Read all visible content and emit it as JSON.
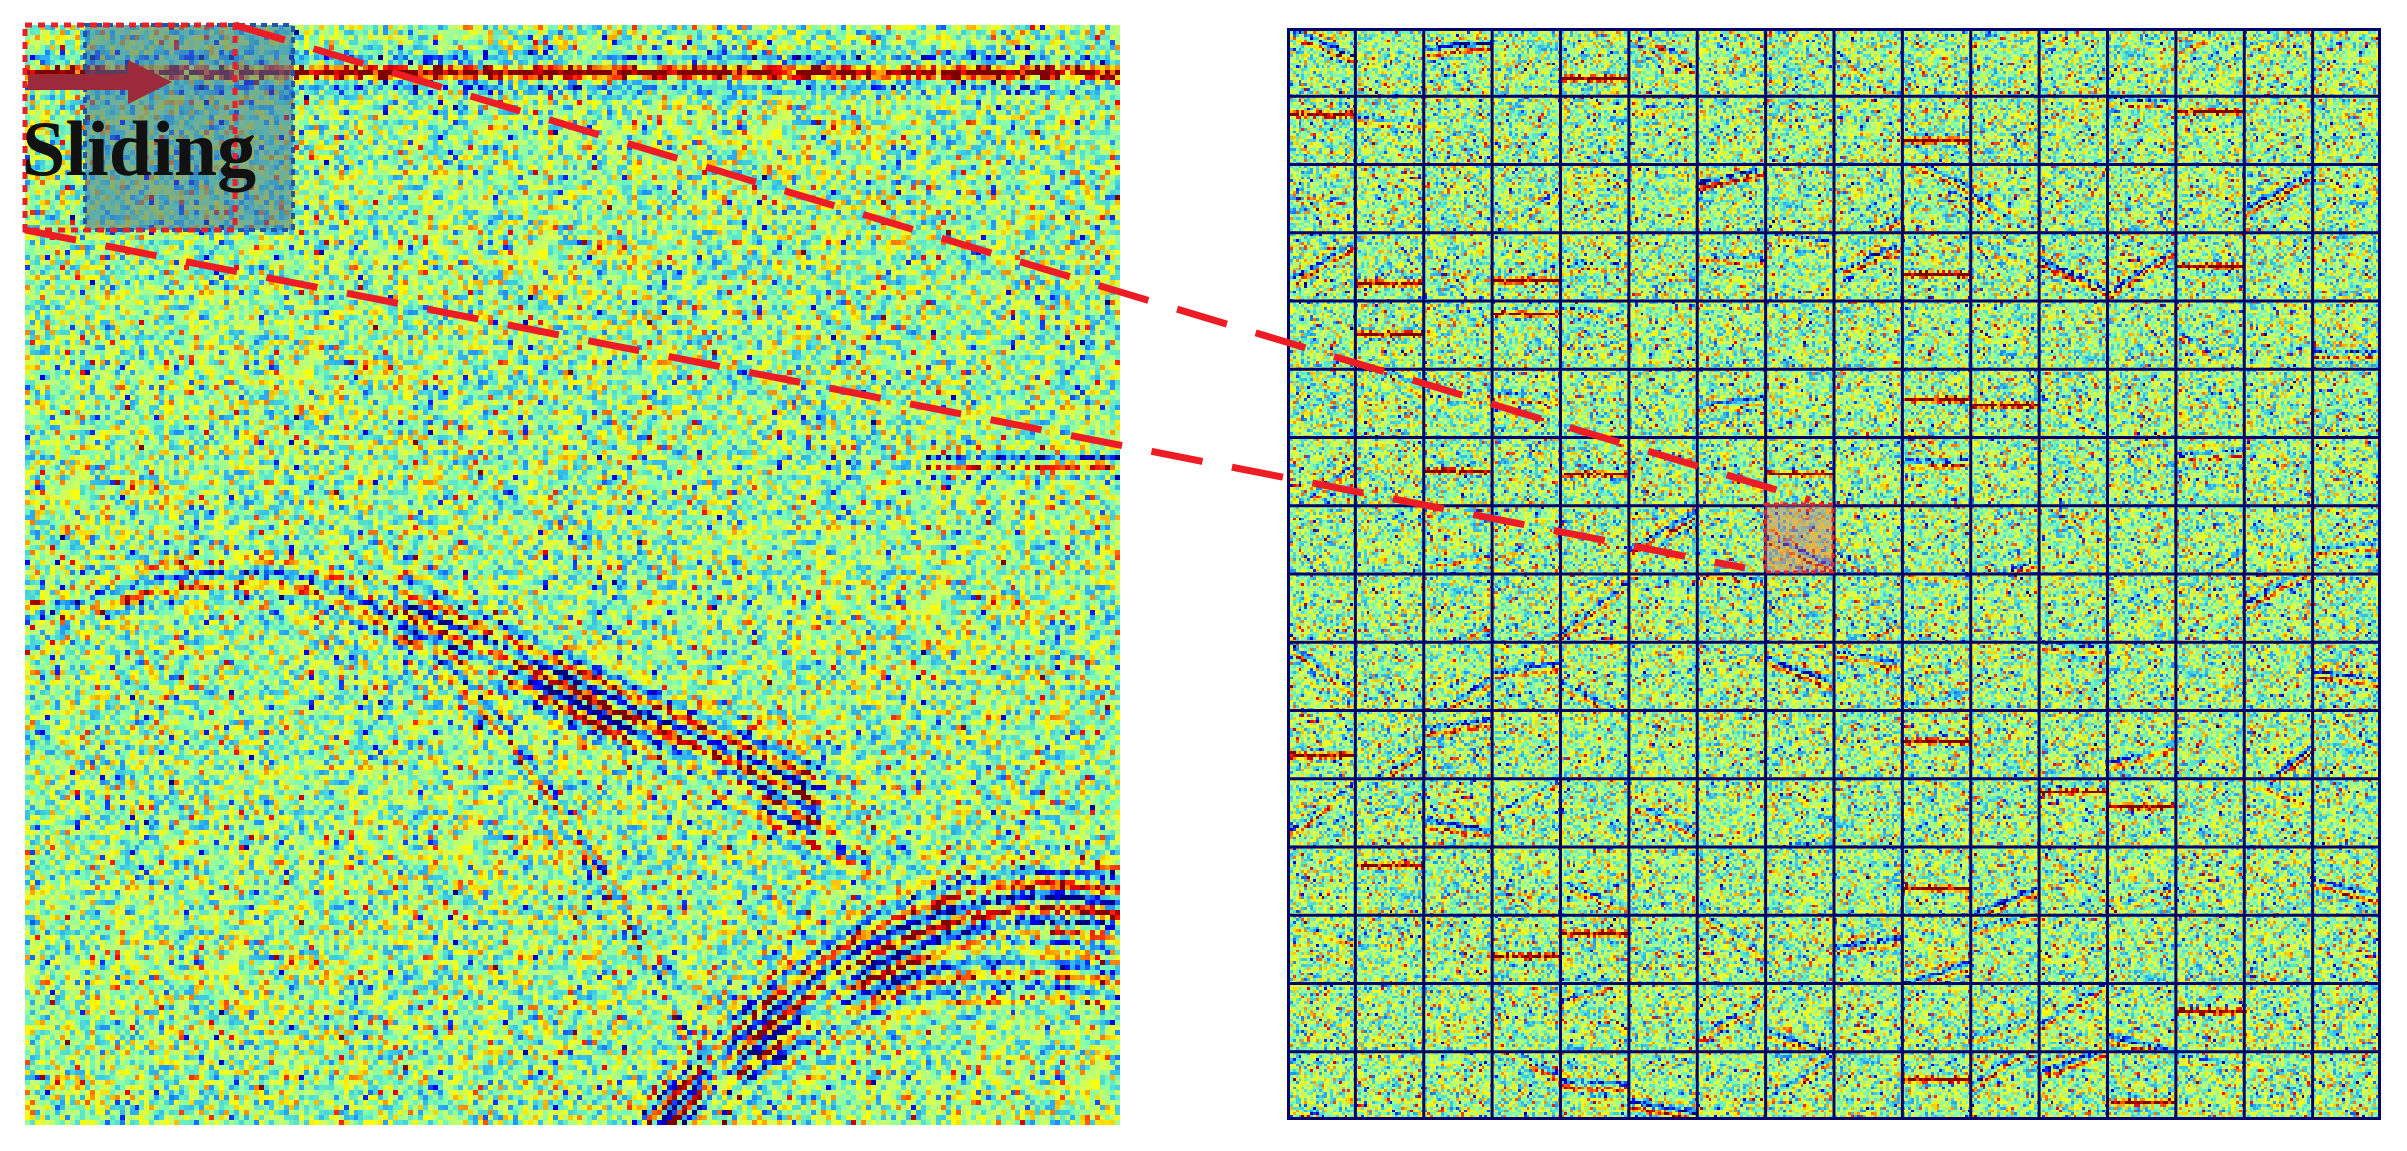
{
  "figure": {
    "label": "Sliding",
    "grid": {
      "rows": 16,
      "cols": 16
    },
    "colors": {
      "colormap": [
        "#00007f",
        "#0000ff",
        "#1e90ff",
        "#3fd0e0",
        "#7fffb0",
        "#c8ff6a",
        "#ffff00",
        "#ff8c00",
        "#ff0000",
        "#7f0000"
      ],
      "window_box": "#e8202a",
      "window_fill": "#3a6ea8",
      "grid_lines": "#00006e",
      "connector": "#ee1c25"
    },
    "icons": [
      "arrow-right-icon"
    ]
  }
}
